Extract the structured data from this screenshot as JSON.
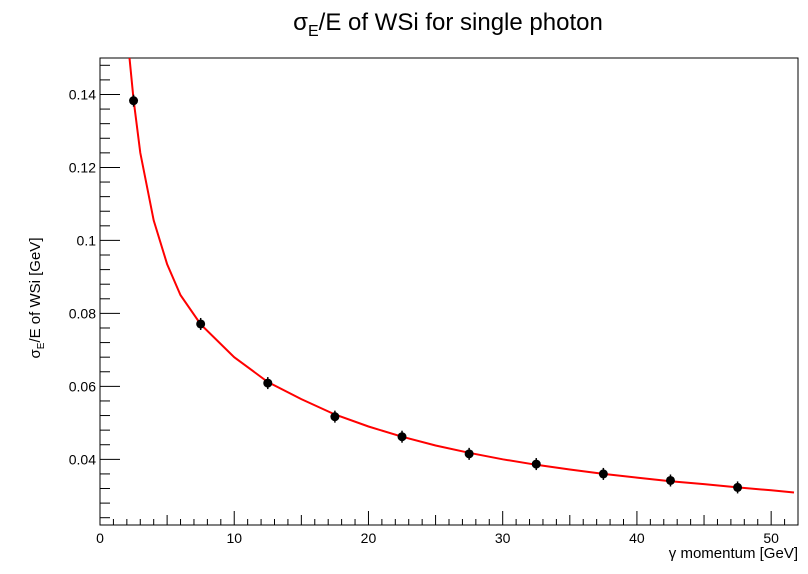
{
  "chart_data": {
    "type": "scatter",
    "title": "σE/E of WSi for single photon",
    "title_parts": {
      "sigma": "σ",
      "sub": "E",
      "rest": "/E of WSi for single photon"
    },
    "xlabel": "γ momentum [GeV]",
    "ylabel": "σE/E of WSi [GeV]",
    "ylabel_parts": {
      "sigma": "σ",
      "sub": "E",
      "rest": "/E of WSi [GeV]"
    },
    "xlim": [
      0,
      52
    ],
    "ylim": [
      0.022,
      0.15
    ],
    "xticks": [
      0,
      10,
      20,
      30,
      40,
      50
    ],
    "xtick_labels": [
      "0",
      "10",
      "20",
      "30",
      "40",
      "50"
    ],
    "yticks": [
      0.04,
      0.06,
      0.08,
      0.1,
      0.12,
      0.14
    ],
    "ytick_labels": [
      "0.04",
      "0.06",
      "0.08",
      "0.1",
      "0.12",
      "0.14"
    ],
    "grid": false,
    "legend": "none",
    "series": [
      {
        "kind": "points",
        "color": "#000000",
        "x": [
          2.5,
          7.5,
          12.5,
          17.5,
          22.5,
          27.5,
          32.5,
          37.5,
          42.5,
          47.5
        ],
        "y": [
          0.1383,
          0.0771,
          0.0609,
          0.0517,
          0.0462,
          0.0415,
          0.0387,
          0.036,
          0.0342,
          0.0323
        ]
      },
      {
        "kind": "fit-curve",
        "color": "#ff0000",
        "x": [
          2.2,
          2.5,
          3,
          4,
          5,
          6,
          7.5,
          10,
          12.5,
          15,
          17.5,
          20,
          22.5,
          25,
          27.5,
          30,
          32.5,
          35,
          37.5,
          40,
          42.5,
          45,
          47.5,
          50,
          51.7
        ],
        "y": [
          0.15,
          0.1385,
          0.124,
          0.1055,
          0.0935,
          0.085,
          0.077,
          0.068,
          0.0612,
          0.0565,
          0.0523,
          0.049,
          0.0462,
          0.0438,
          0.0418,
          0.04,
          0.0385,
          0.0372,
          0.036,
          0.035,
          0.034,
          0.0332,
          0.0323,
          0.0315,
          0.0309
        ]
      }
    ]
  }
}
